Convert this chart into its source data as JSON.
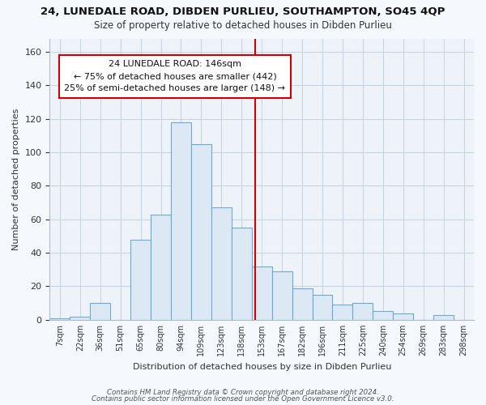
{
  "title": "24, LUNEDALE ROAD, DIBDEN PURLIEU, SOUTHAMPTON, SO45 4QP",
  "subtitle": "Size of property relative to detached houses in Dibden Purlieu",
  "xlabel": "Distribution of detached houses by size in Dibden Purlieu",
  "ylabel": "Number of detached properties",
  "bin_labels": [
    "7sqm",
    "22sqm",
    "36sqm",
    "51sqm",
    "65sqm",
    "80sqm",
    "94sqm",
    "109sqm",
    "123sqm",
    "138sqm",
    "153sqm",
    "167sqm",
    "182sqm",
    "196sqm",
    "211sqm",
    "225sqm",
    "240sqm",
    "254sqm",
    "269sqm",
    "283sqm",
    "298sqm"
  ],
  "bar_heights": [
    1,
    2,
    10,
    0,
    48,
    63,
    118,
    105,
    67,
    55,
    32,
    29,
    19,
    15,
    9,
    10,
    5,
    4,
    0,
    3,
    0
  ],
  "bar_color": "#dce9f5",
  "bar_edgecolor": "#6aaad4",
  "vline_x": 9.67,
  "vline_color": "#cc0000",
  "annotation_title": "24 LUNEDALE ROAD: 146sqm",
  "annotation_line1": "← 75% of detached houses are smaller (442)",
  "annotation_line2": "25% of semi-detached houses are larger (148) →",
  "annotation_box_facecolor": "#ffffff",
  "annotation_box_edgecolor": "#cc0000",
  "ylim": [
    0,
    168
  ],
  "yticks": [
    0,
    20,
    40,
    60,
    80,
    100,
    120,
    140,
    160
  ],
  "footer1": "Contains HM Land Registry data © Crown copyright and database right 2024.",
  "footer2": "Contains public sector information licensed under the Open Government Licence v3.0.",
  "plot_bg_color": "#eef3f9",
  "fig_bg_color": "#f5f8fc",
  "grid_color": "#c8d4e0",
  "spine_color": "#b0bec8"
}
